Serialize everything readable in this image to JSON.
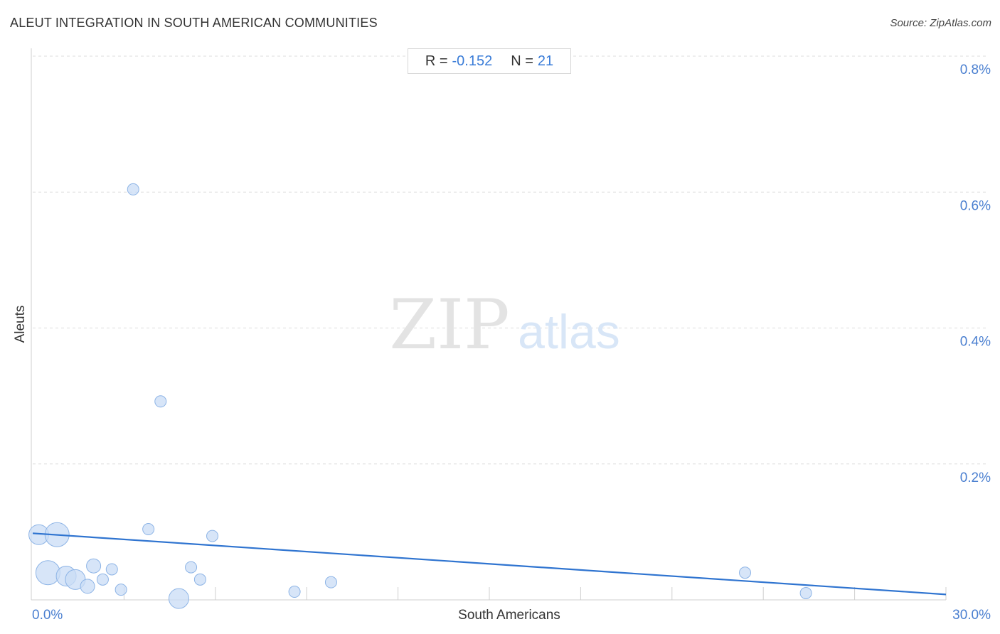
{
  "title": "ALEUT INTEGRATION IN SOUTH AMERICAN COMMUNITIES",
  "source": "Source: ZipAtlas.com",
  "stats": {
    "r_label": "R =",
    "r_value": "-0.152",
    "n_label": "N =",
    "n_value": "21"
  },
  "watermark": {
    "zip": "ZIP",
    "atlas": "atlas"
  },
  "colors": {
    "point_fill": "#c9dcf5",
    "point_stroke": "#8db4e6",
    "trend": "#2f74d0",
    "tick": "#4a7fd0"
  },
  "chart_data": {
    "type": "scatter",
    "title": "ALEUT INTEGRATION IN SOUTH AMERICAN COMMUNITIES",
    "xlabel": "South Americans",
    "ylabel": "Aleuts",
    "xlim": [
      0,
      30
    ],
    "ylim": [
      0,
      0.8
    ],
    "x_tick_labels": [
      "0.0%",
      "30.0%"
    ],
    "y_ticks": [
      0.2,
      0.4,
      0.6,
      0.8
    ],
    "y_tick_labels": [
      "0.2%",
      "0.4%",
      "0.6%",
      "0.8%"
    ],
    "grid": true,
    "points": [
      {
        "x": 0.2,
        "y": 0.096,
        "size": "large"
      },
      {
        "x": 0.8,
        "y": 0.096,
        "size": "xlarge"
      },
      {
        "x": 0.5,
        "y": 0.04,
        "size": "xlarge"
      },
      {
        "x": 1.1,
        "y": 0.035,
        "size": "large"
      },
      {
        "x": 1.4,
        "y": 0.03,
        "size": "large"
      },
      {
        "x": 1.8,
        "y": 0.02,
        "size": "medium"
      },
      {
        "x": 2.0,
        "y": 0.05,
        "size": "medium"
      },
      {
        "x": 2.3,
        "y": 0.03,
        "size": "small"
      },
      {
        "x": 2.6,
        "y": 0.045,
        "size": "small"
      },
      {
        "x": 2.9,
        "y": 0.015,
        "size": "small"
      },
      {
        "x": 3.3,
        "y": 0.604,
        "size": "small"
      },
      {
        "x": 3.8,
        "y": 0.104,
        "size": "small"
      },
      {
        "x": 4.2,
        "y": 0.292,
        "size": "small"
      },
      {
        "x": 4.8,
        "y": 0.002,
        "size": "large"
      },
      {
        "x": 5.2,
        "y": 0.048,
        "size": "small"
      },
      {
        "x": 5.5,
        "y": 0.03,
        "size": "small"
      },
      {
        "x": 5.9,
        "y": 0.094,
        "size": "small"
      },
      {
        "x": 8.6,
        "y": 0.012,
        "size": "small"
      },
      {
        "x": 9.8,
        "y": 0.026,
        "size": "small"
      },
      {
        "x": 23.4,
        "y": 0.04,
        "size": "small"
      },
      {
        "x": 25.4,
        "y": 0.01,
        "size": "small"
      }
    ],
    "trendline": {
      "x": [
        0,
        30
      ],
      "y": [
        0.098,
        0.008
      ]
    }
  }
}
